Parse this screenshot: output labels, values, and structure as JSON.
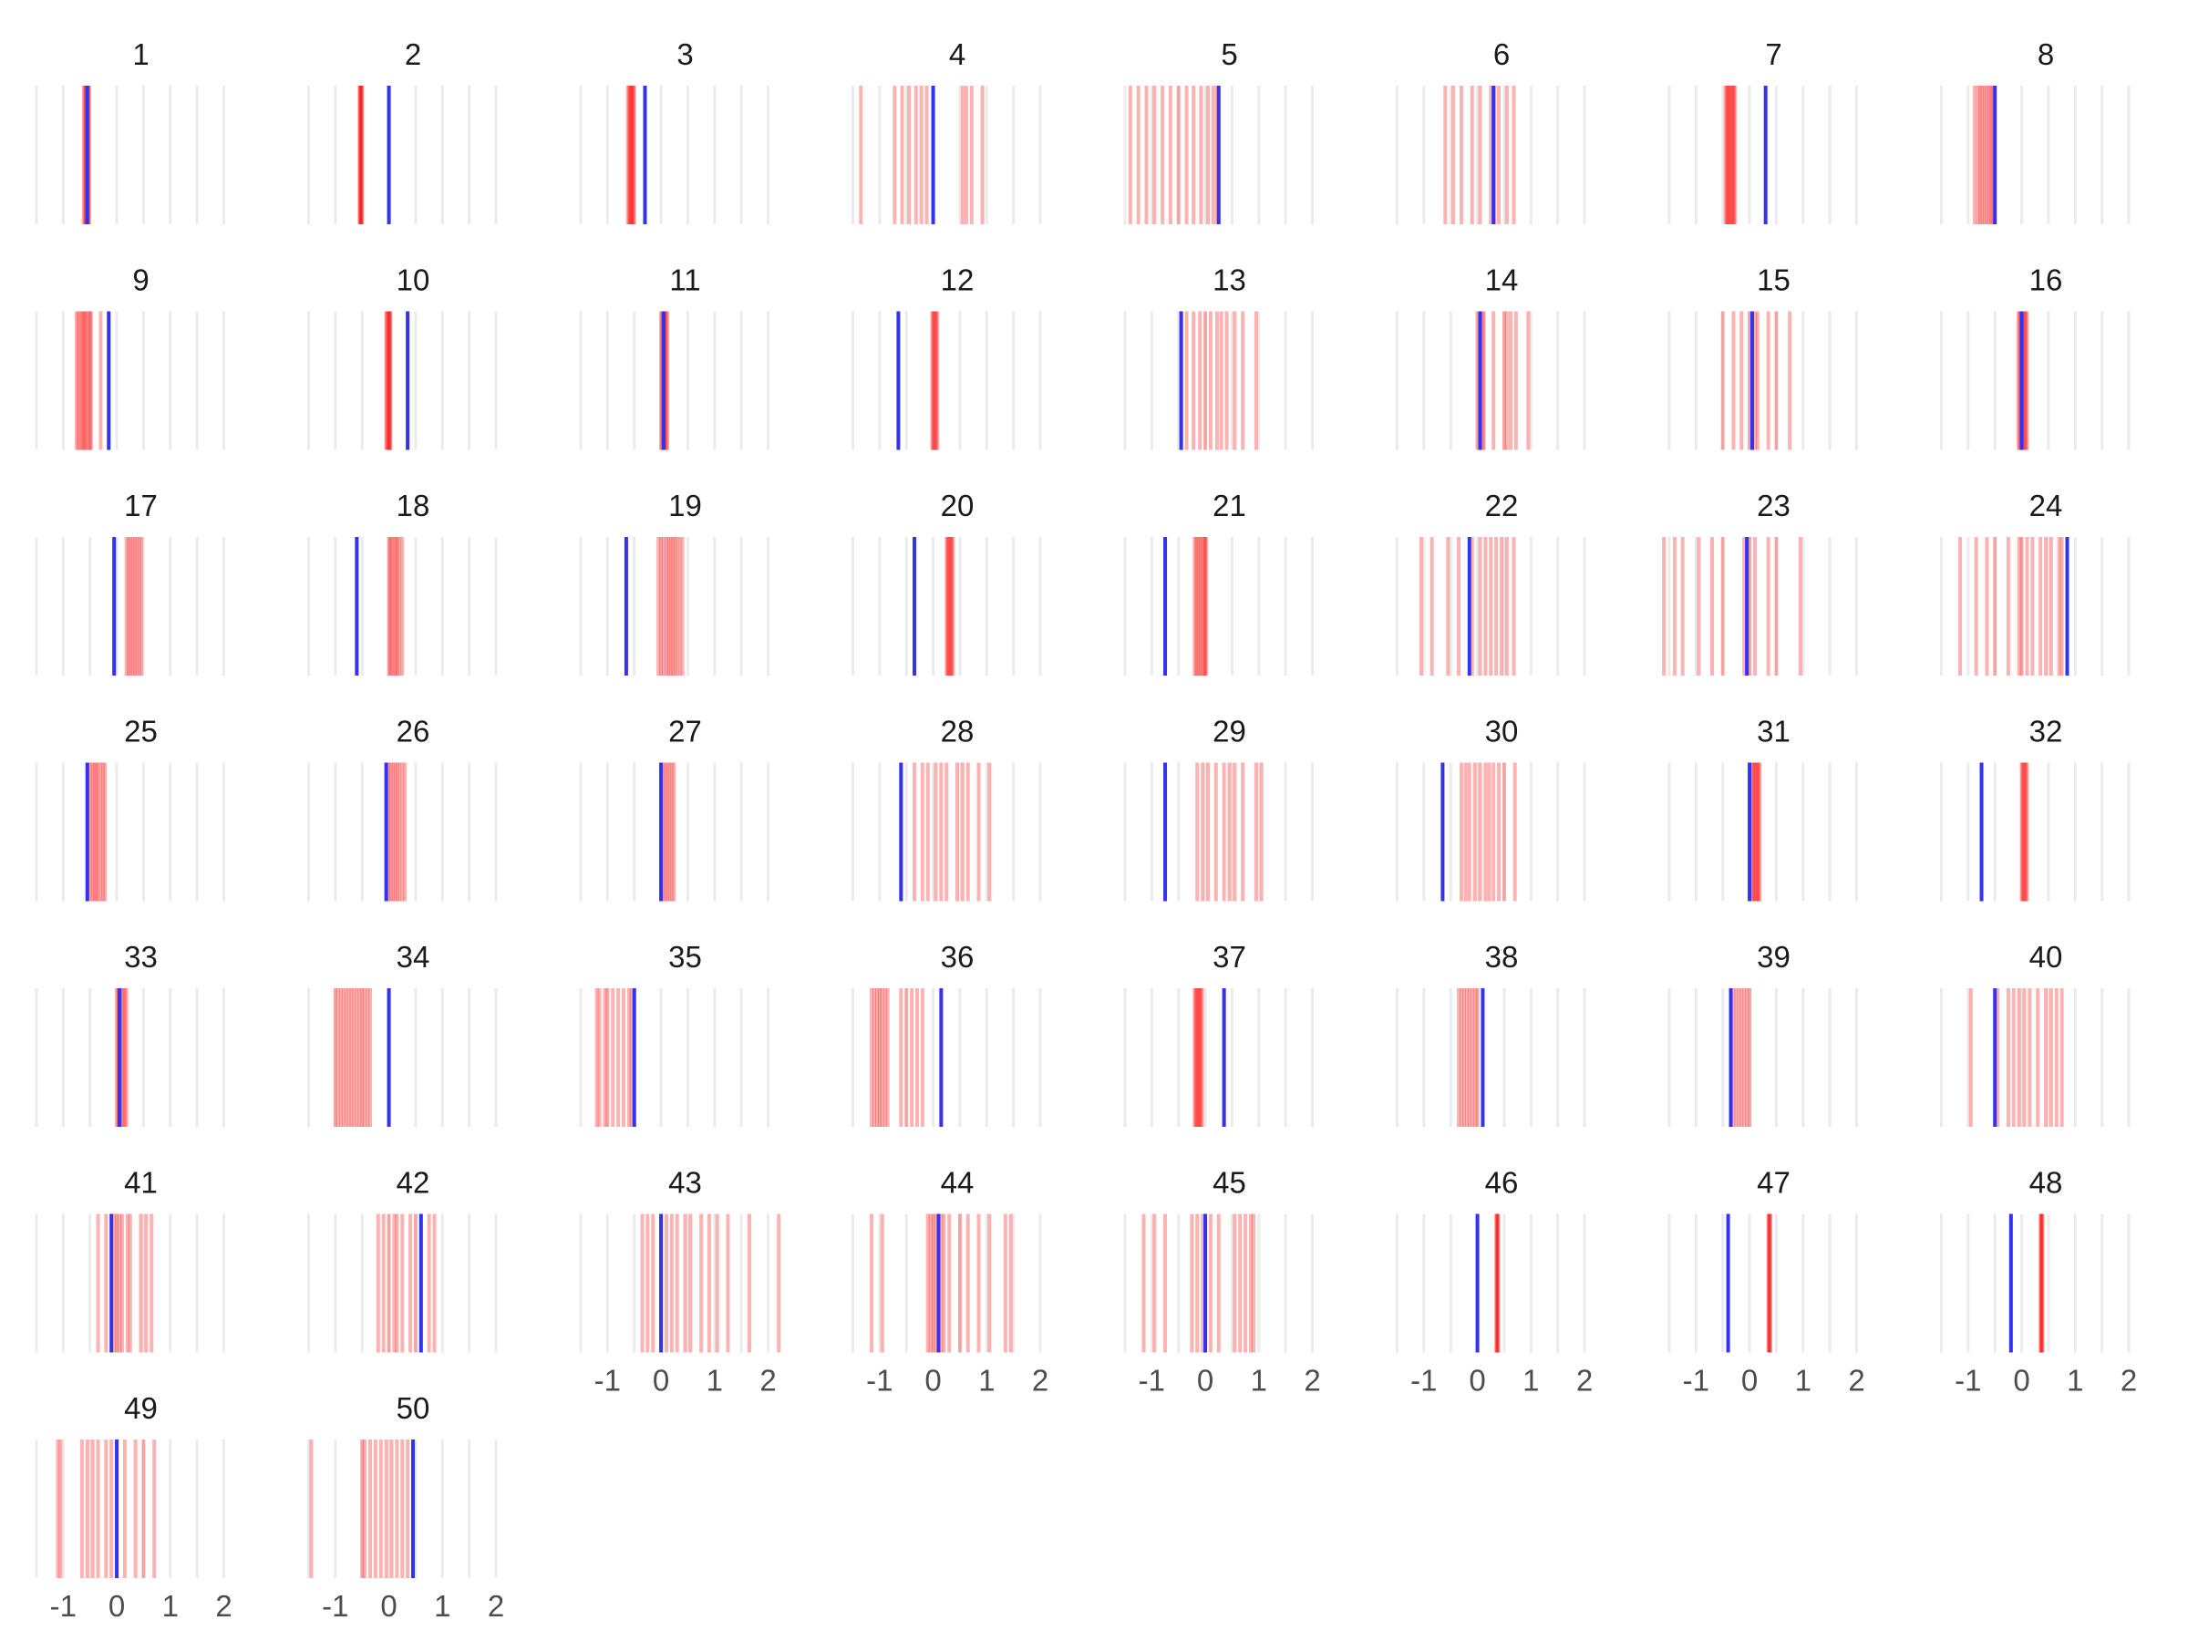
{
  "colors": {
    "blue": "#3333ee",
    "red": "#ff0000",
    "grid": "#ebebeb"
  },
  "chart_data": {
    "type": "strip",
    "xlim": [
      -1.5,
      2.4
    ],
    "x_ticks": [
      -1,
      0,
      1,
      2
    ],
    "x_tick_labels": [
      "-1",
      "0",
      "1",
      "2"
    ],
    "grid": true,
    "red_opacity": 0.3,
    "panels": [
      {
        "label": "1",
        "blue": -0.55,
        "reds": [
          -0.62,
          -0.6,
          -0.58,
          -0.57,
          -0.56,
          -0.55,
          -0.54,
          -0.53,
          -0.52
        ]
      },
      {
        "label": "2",
        "blue": 0.0,
        "reds": [
          -0.55,
          -0.54,
          -0.53,
          -0.52,
          -0.51,
          -0.5
        ]
      },
      {
        "label": "3",
        "blue": -0.3,
        "reds": [
          -0.62,
          -0.6,
          -0.58,
          -0.56,
          -0.55,
          -0.54,
          -0.52,
          -0.5
        ]
      },
      {
        "label": "4",
        "blue": 0.0,
        "reds": [
          -1.35,
          -0.72,
          -0.58,
          -0.45,
          -0.32,
          -0.22,
          -0.12,
          0.55,
          0.62,
          0.72,
          0.92
        ]
      },
      {
        "label": "5",
        "blue": 0.25,
        "reds": [
          -1.4,
          -1.25,
          -1.1,
          -0.95,
          -0.8,
          -0.65,
          -0.5,
          -0.35,
          -0.22,
          -0.08,
          0.05,
          0.15,
          0.22
        ]
      },
      {
        "label": "6",
        "blue": 0.3,
        "reds": [
          -0.6,
          -0.45,
          -0.3,
          -0.1,
          0.05,
          0.25,
          0.32,
          0.4,
          0.55,
          0.68
        ]
      },
      {
        "label": "7",
        "blue": 0.3,
        "reds": [
          -0.45,
          -0.43,
          -0.41,
          -0.39,
          -0.37,
          -0.35,
          -0.33,
          -0.31,
          -0.29,
          -0.27
        ]
      },
      {
        "label": "8",
        "blue": -0.5,
        "reds": [
          -0.88,
          -0.82,
          -0.78,
          -0.74,
          -0.7,
          -0.66,
          -0.62,
          -0.58,
          -0.55,
          -0.52
        ]
      },
      {
        "label": "9",
        "blue": -0.15,
        "reds": [
          -0.75,
          -0.72,
          -0.68,
          -0.65,
          -0.62,
          -0.6,
          -0.57,
          -0.54,
          -0.5,
          -0.48,
          -0.3
        ]
      },
      {
        "label": "10",
        "blue": 0.35,
        "reds": [
          -0.05,
          -0.04,
          -0.02,
          0.0,
          0.01,
          0.02,
          0.03
        ]
      },
      {
        "label": "11",
        "blue": 0.05,
        "reds": [
          0.0,
          0.02,
          0.04,
          0.06,
          0.08,
          0.1,
          0.12
        ]
      },
      {
        "label": "12",
        "blue": -0.65,
        "reds": [
          -0.02,
          0.0,
          0.02,
          0.04,
          0.06,
          0.08
        ]
      },
      {
        "label": "13",
        "blue": -0.45,
        "reds": [
          -0.45,
          -0.35,
          -0.22,
          -0.1,
          0.0,
          0.1,
          0.22,
          0.3,
          0.4,
          0.55,
          0.7,
          0.95
        ]
      },
      {
        "label": "14",
        "blue": 0.05,
        "reds": [
          0.0,
          0.05,
          0.1,
          0.12,
          0.3,
          0.5,
          0.55,
          0.62,
          0.72,
          0.95
        ]
      },
      {
        "label": "15",
        "blue": 0.05,
        "reds": [
          -0.5,
          -0.3,
          -0.15,
          0.0,
          0.05,
          0.1,
          0.15,
          0.35,
          0.5,
          0.75
        ]
      },
      {
        "label": "16",
        "blue": 0.0,
        "reds": [
          -0.06,
          -0.04,
          -0.02,
          0.0,
          0.02,
          0.04,
          0.06,
          0.08,
          0.1
        ]
      },
      {
        "label": "17",
        "blue": -0.05,
        "reds": [
          0.18,
          0.22,
          0.26,
          0.3,
          0.34,
          0.38,
          0.42,
          0.46
        ]
      },
      {
        "label": "18",
        "blue": -0.6,
        "reds": [
          0.0,
          0.03,
          0.06,
          0.1,
          0.13,
          0.16,
          0.2,
          0.25
        ]
      },
      {
        "label": "19",
        "blue": -0.65,
        "reds": [
          -0.05,
          0.0,
          0.05,
          0.1,
          0.14,
          0.18,
          0.22,
          0.26,
          0.3,
          0.35,
          0.4
        ]
      },
      {
        "label": "20",
        "blue": -0.35,
        "reds": [
          0.25,
          0.27,
          0.29,
          0.31,
          0.33,
          0.35,
          0.37
        ]
      },
      {
        "label": "21",
        "blue": -0.75,
        "reds": [
          -0.2,
          -0.17,
          -0.14,
          -0.11,
          -0.08,
          -0.05,
          -0.02,
          0.0,
          0.02
        ]
      },
      {
        "label": "22",
        "blue": -0.15,
        "reds": [
          -1.05,
          -0.85,
          -0.55,
          -0.35,
          -0.1,
          0.05,
          0.15,
          0.25,
          0.35,
          0.45,
          0.55,
          0.68
        ]
      },
      {
        "label": "23",
        "blue": -0.05,
        "reds": [
          -1.6,
          -1.4,
          -1.25,
          -0.95,
          -0.7,
          -0.5,
          -0.1,
          0.0,
          0.1,
          0.35,
          0.5,
          0.95
        ]
      },
      {
        "label": "24",
        "blue": 0.85,
        "reds": [
          -1.15,
          -0.85,
          -0.65,
          -0.5,
          -0.25,
          -0.05,
          0.0,
          0.1,
          0.2,
          0.35,
          0.45,
          0.55,
          0.7,
          0.75
        ]
      },
      {
        "label": "25",
        "blue": -0.55,
        "reds": [
          -0.55,
          -0.5,
          -0.45,
          -0.42,
          -0.38,
          -0.35,
          -0.3,
          -0.26,
          -0.22
        ]
      },
      {
        "label": "26",
        "blue": -0.05,
        "reds": [
          -0.05,
          0.0,
          0.04,
          0.08,
          0.12,
          0.16,
          0.2,
          0.25,
          0.3
        ]
      },
      {
        "label": "27",
        "blue": 0.0,
        "reds": [
          0.0,
          0.04,
          0.08,
          0.12,
          0.16,
          0.2,
          0.24
        ]
      },
      {
        "label": "28",
        "blue": -0.6,
        "reds": [
          -0.6,
          -0.35,
          -0.2,
          -0.1,
          0.05,
          0.15,
          0.25,
          0.45,
          0.55,
          0.65,
          0.85,
          1.05
        ]
      },
      {
        "label": "29",
        "blue": -0.75,
        "reds": [
          -0.15,
          -0.05,
          0.05,
          0.2,
          0.35,
          0.45,
          0.55,
          0.7,
          0.95,
          1.05
        ]
      },
      {
        "label": "30",
        "blue": -0.65,
        "reds": [
          -0.3,
          -0.22,
          -0.15,
          -0.05,
          0.05,
          0.15,
          0.22,
          0.3,
          0.4,
          0.5,
          0.7
        ]
      },
      {
        "label": "31",
        "blue": 0.0,
        "reds": [
          0.05,
          0.07,
          0.09,
          0.11,
          0.13,
          0.15,
          0.17,
          0.19
        ]
      },
      {
        "label": "32",
        "blue": -0.75,
        "reds": [
          0.0,
          0.02,
          0.04,
          0.06,
          0.08,
          0.1
        ]
      },
      {
        "label": "33",
        "blue": 0.05,
        "reds": [
          0.0,
          0.03,
          0.06,
          0.09,
          0.12,
          0.15,
          0.18
        ]
      },
      {
        "label": "34",
        "blue": 0.0,
        "reds": [
          -1.0,
          -0.95,
          -0.9,
          -0.85,
          -0.8,
          -0.75,
          -0.7,
          -0.65,
          -0.6,
          -0.55,
          -0.5,
          -0.45,
          -0.4,
          -0.35
        ]
      },
      {
        "label": "35",
        "blue": -0.5,
        "reds": [
          -1.2,
          -1.15,
          -1.05,
          -1.0,
          -0.9,
          -0.8,
          -0.7,
          -0.6,
          -0.55
        ]
      },
      {
        "label": "36",
        "blue": 0.15,
        "reds": [
          -1.15,
          -1.1,
          -1.05,
          -1.0,
          -0.95,
          -0.9,
          -0.85,
          -0.6,
          -0.5,
          -0.4,
          -0.3,
          -0.2
        ]
      },
      {
        "label": "37",
        "blue": 0.35,
        "reds": [
          -0.2,
          -0.18,
          -0.16,
          -0.14,
          -0.12,
          -0.1,
          -0.08,
          -0.06
        ]
      },
      {
        "label": "38",
        "blue": 0.1,
        "reds": [
          -0.35,
          -0.3,
          -0.25,
          -0.2,
          -0.15,
          -0.1,
          -0.05,
          0.0
        ]
      },
      {
        "label": "39",
        "blue": -0.35,
        "reds": [
          -0.35,
          -0.3,
          -0.25,
          -0.2,
          -0.15,
          -0.1,
          -0.05,
          0.0
        ]
      },
      {
        "label": "40",
        "blue": -0.5,
        "reds": [
          -0.95,
          -0.45,
          -0.25,
          -0.15,
          -0.05,
          0.05,
          0.15,
          0.3,
          0.45,
          0.55,
          0.65,
          0.75
        ]
      },
      {
        "label": "41",
        "blue": -0.1,
        "reds": [
          -0.35,
          -0.2,
          -0.05,
          0.0,
          0.05,
          0.1,
          0.2,
          0.25,
          0.45,
          0.55,
          0.65
        ]
      },
      {
        "label": "42",
        "blue": 0.6,
        "reds": [
          -0.2,
          -0.1,
          0.0,
          0.1,
          0.15,
          0.25,
          0.4,
          0.5,
          0.6,
          0.75,
          0.85
        ]
      },
      {
        "label": "43",
        "blue": 0.0,
        "reds": [
          -0.35,
          -0.25,
          -0.15,
          0.0,
          0.1,
          0.2,
          0.3,
          0.45,
          0.55,
          0.75,
          0.9,
          1.05,
          1.25,
          1.65,
          2.2
        ]
      },
      {
        "label": "44",
        "blue": 0.1,
        "reds": [
          -1.15,
          -0.95,
          -0.1,
          -0.05,
          0.0,
          0.05,
          0.1,
          0.15,
          0.2,
          0.3,
          0.5,
          0.65,
          0.85,
          1.05,
          1.35,
          1.45
        ]
      },
      {
        "label": "45",
        "blue": 0.0,
        "reds": [
          -1.15,
          -0.95,
          -0.75,
          -0.25,
          -0.15,
          -0.05,
          0.0,
          0.1,
          0.25,
          0.55,
          0.65,
          0.75,
          0.85,
          0.9
        ]
      },
      {
        "label": "46",
        "blue": 0.0,
        "reds": [
          0.35,
          0.36,
          0.37,
          0.38,
          0.39
        ]
      },
      {
        "label": "47",
        "blue": -0.4,
        "reds": [
          0.35,
          0.36,
          0.37,
          0.38,
          0.39
        ]
      },
      {
        "label": "48",
        "blue": -0.2,
        "reds": [
          0.35,
          0.36,
          0.37,
          0.38,
          0.39
        ]
      },
      {
        "label": "49",
        "blue": 0.0,
        "reds": [
          -1.1,
          -1.05,
          -0.65,
          -0.55,
          -0.45,
          -0.35,
          -0.2,
          -0.1,
          0.0,
          0.15,
          0.35,
          0.5,
          0.7
        ]
      },
      {
        "label": "50",
        "blue": 0.45,
        "reds": [
          -1.45,
          -0.5,
          -0.45,
          -0.35,
          -0.25,
          -0.15,
          -0.05,
          0.05,
          0.15,
          0.25,
          0.35,
          0.45
        ]
      }
    ]
  }
}
